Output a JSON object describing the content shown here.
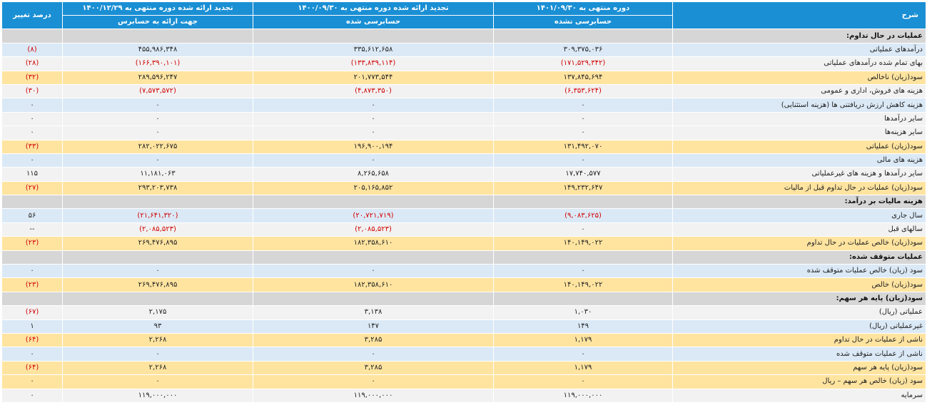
{
  "header": {
    "desc": "شرح",
    "col1": "دوره منتهی به ۱۴۰۱/۰۹/۳۰",
    "col1_sub": "حسابرسی نشده",
    "col2": "تجدید ارائه شده دوره منتهی به ۱۴۰۰/۰۹/۳۰",
    "col2_sub": "حسابرسی شده",
    "col3": "تجدید ارائه شده دوره منتهی به ۱۴۰۰/۱۲/۲۹",
    "col3_sub": "جهت ارائه به حسابرس",
    "change": "درصد تغییر"
  },
  "rows": [
    {
      "type": "section",
      "label": "عملیات در حال تداوم:"
    },
    {
      "type": "data",
      "style": "blue",
      "label": "درآمدهای عملیاتی",
      "v1": "۳۰۹,۳۷۵,۰۳۶",
      "v2": "۳۳۵,۶۱۲,۶۵۸",
      "v3": "۴۵۵,۹۸۶,۳۴۸",
      "pct": "(۸)",
      "neg1": false,
      "neg2": false,
      "neg3": false,
      "negp": true
    },
    {
      "type": "data",
      "style": "white",
      "label": "بهای تمام شده درآمدهای عملیاتی",
      "v1": "(۱۷۱,۵۲۹,۳۴۲)",
      "v2": "(۱۳۳,۸۳۹,۱۱۴)",
      "v3": "(۱۶۶,۳۹۰,۱۰۱)",
      "pct": "(۲۸)",
      "neg1": true,
      "neg2": true,
      "neg3": true,
      "negp": true
    },
    {
      "type": "data",
      "style": "gold",
      "label": "سود(زیان) ناخالص",
      "v1": "۱۳۷,۸۴۵,۶۹۴",
      "v2": "۲۰۱,۷۷۳,۵۴۴",
      "v3": "۲۸۹,۵۹۶,۲۴۷",
      "pct": "(۳۲)",
      "neg1": false,
      "neg2": false,
      "neg3": false,
      "negp": true
    },
    {
      "type": "data",
      "style": "white",
      "label": "هزینه های فروش، اداری و عمومی",
      "v1": "(۶,۳۵۳,۶۲۴)",
      "v2": "(۴,۸۷۳,۳۵۰)",
      "v3": "(۷,۵۷۳,۵۷۲)",
      "pct": "(۳۰)",
      "neg1": true,
      "neg2": true,
      "neg3": true,
      "negp": true
    },
    {
      "type": "data",
      "style": "blue",
      "label": "هزینه کاهش ارزش دریافتنی ها (هزینه استثنایی)",
      "v1": "۰",
      "v2": "۰",
      "v3": "۰",
      "pct": "۰",
      "neg1": false,
      "neg2": false,
      "neg3": false,
      "negp": false
    },
    {
      "type": "data",
      "style": "white",
      "label": "سایر درآمدها",
      "v1": "۰",
      "v2": "۰",
      "v3": "۰",
      "pct": "۰",
      "neg1": false,
      "neg2": false,
      "neg3": false,
      "negp": false
    },
    {
      "type": "data",
      "style": "white",
      "label": "سایر هزینه‌ها",
      "v1": "۰",
      "v2": "۰",
      "v3": "۰",
      "pct": "۰",
      "neg1": false,
      "neg2": false,
      "neg3": false,
      "negp": false
    },
    {
      "type": "data",
      "style": "gold",
      "label": "سود(زیان) عملیاتی",
      "v1": "۱۳۱,۴۹۲,۰۷۰",
      "v2": "۱۹۶,۹۰۰,۱۹۴",
      "v3": "۲۸۲,۰۲۲,۶۷۵",
      "pct": "(۳۳)",
      "neg1": false,
      "neg2": false,
      "neg3": false,
      "negp": true
    },
    {
      "type": "data",
      "style": "blue",
      "label": "هزینه های مالی",
      "v1": "۰",
      "v2": "۰",
      "v3": "۰",
      "pct": "۰",
      "neg1": false,
      "neg2": false,
      "neg3": false,
      "negp": false
    },
    {
      "type": "data",
      "style": "white",
      "label": "سایر درآمدها و هزینه های غیرعملیاتی",
      "v1": "۱۷,۷۴۰,۵۷۷",
      "v2": "۸,۲۶۵,۶۵۸",
      "v3": "۱۱,۱۸۱,۰۶۳",
      "pct": "۱۱۵",
      "neg1": false,
      "neg2": false,
      "neg3": false,
      "negp": false
    },
    {
      "type": "data",
      "style": "gold",
      "label": "سود(زیان) عملیات در حال تداوم قبل از مالیات",
      "v1": "۱۴۹,۲۳۲,۶۴۷",
      "v2": "۲۰۵,۱۶۵,۸۵۲",
      "v3": "۲۹۳,۲۰۳,۷۳۸",
      "pct": "(۲۷)",
      "neg1": false,
      "neg2": false,
      "neg3": false,
      "negp": true
    },
    {
      "type": "section",
      "label": "هزینه مالیات بر درآمد:"
    },
    {
      "type": "data",
      "style": "blue",
      "label": "سال جاری",
      "v1": "(۹,۰۸۳,۶۲۵)",
      "v2": "(۲۰,۷۲۱,۷۱۹)",
      "v3": "(۲۱,۶۴۱,۳۲۰)",
      "pct": "۵۶",
      "neg1": true,
      "neg2": true,
      "neg3": true,
      "negp": false
    },
    {
      "type": "data",
      "style": "white",
      "label": "سالهای قبل",
      "v1": "۰",
      "v2": "(۲,۰۸۵,۵۲۳)",
      "v3": "(۲,۰۸۵,۵۲۳)",
      "pct": "--",
      "neg1": false,
      "neg2": true,
      "neg3": true,
      "negp": false
    },
    {
      "type": "data",
      "style": "gold",
      "label": "سود(زیان) خالص عملیات در حال تداوم",
      "v1": "۱۴۰,۱۴۹,۰۲۲",
      "v2": "۱۸۲,۳۵۸,۶۱۰",
      "v3": "۲۶۹,۴۷۶,۸۹۵",
      "pct": "(۲۳)",
      "neg1": false,
      "neg2": false,
      "neg3": false,
      "negp": true
    },
    {
      "type": "section",
      "label": "عملیات متوقف شده:"
    },
    {
      "type": "data",
      "style": "blue",
      "label": "سود (زیان) خالص عملیات متوقف شده",
      "v1": "۰",
      "v2": "۰",
      "v3": "۰",
      "pct": "۰",
      "neg1": false,
      "neg2": false,
      "neg3": false,
      "negp": false
    },
    {
      "type": "data",
      "style": "gold",
      "label": "سود(زیان) خالص",
      "v1": "۱۴۰,۱۴۹,۰۲۲",
      "v2": "۱۸۲,۳۵۸,۶۱۰",
      "v3": "۲۶۹,۴۷۶,۸۹۵",
      "pct": "(۲۳)",
      "neg1": false,
      "neg2": false,
      "neg3": false,
      "negp": true
    },
    {
      "type": "section",
      "label": "سود(زیان) پایه هر سهم:"
    },
    {
      "type": "data",
      "style": "white",
      "label": "عملیاتی (ریال)",
      "v1": "۱,۰۳۰",
      "v2": "۳,۱۳۸",
      "v3": "۲,۱۷۵",
      "pct": "(۶۷)",
      "neg1": false,
      "neg2": false,
      "neg3": false,
      "negp": true
    },
    {
      "type": "data",
      "style": "blue",
      "label": "غیرعملیاتی (ریال)",
      "v1": "۱۴۹",
      "v2": "۱۴۷",
      "v3": "۹۳",
      "pct": "۱",
      "neg1": false,
      "neg2": false,
      "neg3": false,
      "negp": false
    },
    {
      "type": "data",
      "style": "gold",
      "label": "ناشی از عملیات در حال تداوم",
      "v1": "۱,۱۷۹",
      "v2": "۳,۲۸۵",
      "v3": "۲,۲۶۸",
      "pct": "(۶۴)",
      "neg1": false,
      "neg2": false,
      "neg3": false,
      "negp": true
    },
    {
      "type": "data",
      "style": "blue",
      "label": "ناشی از عملیات متوقف شده",
      "v1": "۰",
      "v2": "۰",
      "v3": "۰",
      "pct": "۰",
      "neg1": false,
      "neg2": false,
      "neg3": false,
      "negp": false
    },
    {
      "type": "data",
      "style": "gold",
      "label": "سود(زیان) پایه هر سهم",
      "v1": "۱,۱۷۹",
      "v2": "۳,۲۸۵",
      "v3": "۲,۲۶۸",
      "pct": "(۶۴)",
      "neg1": false,
      "neg2": false,
      "neg3": false,
      "negp": true
    },
    {
      "type": "data",
      "style": "gold",
      "label": "سود (زیان) خالص هر سهم – ریال",
      "v1": "۰",
      "v2": "۰",
      "v3": "۰",
      "pct": "۰",
      "neg1": false,
      "neg2": false,
      "neg3": false,
      "negp": false
    },
    {
      "type": "data",
      "style": "white",
      "label": "سرمایه",
      "v1": "۱۱۹,۰۰۰,۰۰۰",
      "v2": "۱۱۹,۰۰۰,۰۰۰",
      "v3": "۱۱۹,۰۰۰,۰۰۰",
      "pct": "۰",
      "neg1": false,
      "neg2": false,
      "neg3": false,
      "negp": false
    }
  ]
}
